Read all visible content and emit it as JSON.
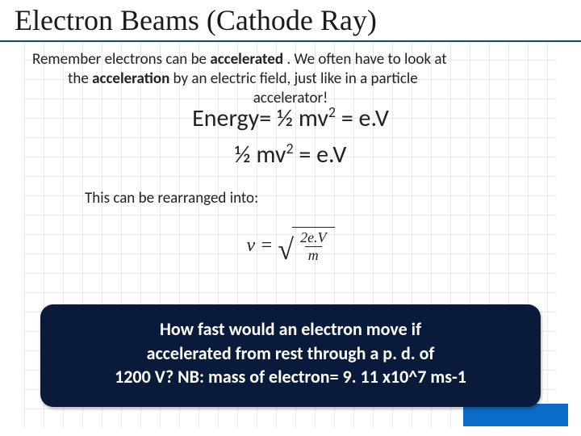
{
  "colors": {
    "title_underline": "#0a4a8a",
    "grid_line": "#d9d9d9",
    "text": "#222222",
    "box_bg": "#0a1a3a",
    "box_text": "#ffffff",
    "accent_bar": "#0a6cc8",
    "page_bg": "#ffffff"
  },
  "typography": {
    "title_family": "Times New Roman",
    "body_family": "Calibri",
    "title_size_pt": 27,
    "body_size_pt": 14,
    "equation_size_pt": 22,
    "question_size_pt": 17
  },
  "title": "Electron Beams (Cathode Ray)",
  "intro": {
    "line1_pre": "Remember electrons can be ",
    "line1_bold": "accelerated",
    "line1_post": " . We often  have to look at",
    "line2_pre": "the ",
    "line2_bold": "acceleration",
    "line2_post": " by an electric field, just like in a particle",
    "line3": "accelerator!"
  },
  "equations": {
    "eq1_lhs": "Energy= ",
    "eq1_half": "½ ",
    "eq1_mv": "mv",
    "eq1_sup": "2",
    "eq1_rhs": " = e.V",
    "eq2_half": "½ ",
    "eq2_mv": "mv",
    "eq2_sup": "2",
    "eq2_rhs": " = e.V"
  },
  "rearranged_label": "This can be rearranged into:",
  "formula": {
    "lhs": "v =",
    "numerator": "2e.V",
    "denominator": "m"
  },
  "question": {
    "line1": "How fast would an electron move if",
    "line2": "accelerated from rest through a p. d. of",
    "line3": "1200 V? NB: mass of electron= 9. 11 x10^7 ms-1"
  }
}
